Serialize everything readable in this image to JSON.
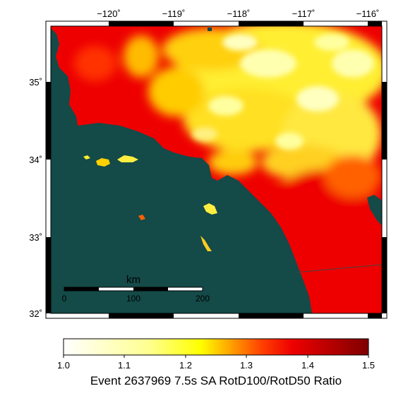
{
  "map": {
    "lon_ticks": [
      "−120˚",
      "−119˚",
      "−118˚",
      "−117˚",
      "−116˚"
    ],
    "lat_ticks": [
      "35˚",
      "34˚",
      "33˚",
      "32˚"
    ],
    "lon_range": [
      -120.5,
      -115.7
    ],
    "lat_range": [
      32.0,
      35.7
    ],
    "ocean_color": "#144a48",
    "scale_bar": {
      "unit": "km",
      "labels": [
        "0",
        "100",
        "200"
      ]
    }
  },
  "colorbar": {
    "ticks": [
      "1.0",
      "1.1",
      "1.2",
      "1.3",
      "1.4",
      "1.5"
    ],
    "min": 1.0,
    "max": 1.5,
    "colors": [
      "#ffffff",
      "#ffff80",
      "#ffff00",
      "#ff0000",
      "#7f0000"
    ],
    "title": "Event 2637969 7.5s SA RotD100/RotD50 Ratio"
  }
}
